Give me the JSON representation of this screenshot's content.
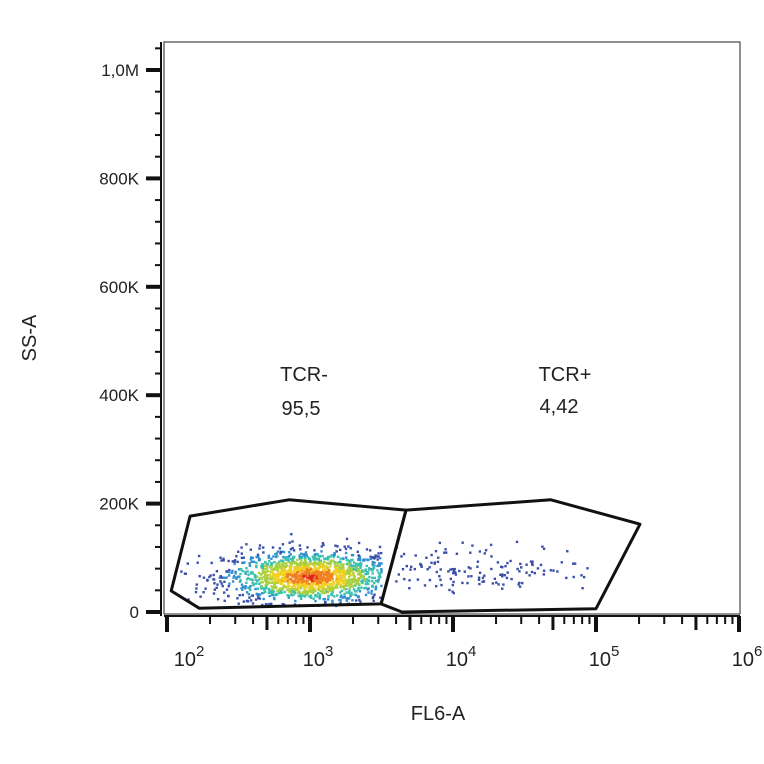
{
  "chart_data": {
    "type": "scatter",
    "title": "",
    "xlabel": "FL6-A",
    "ylabel": "SS-A",
    "xscale": "log",
    "xlim": [
      100,
      1000000
    ],
    "ylim": [
      0,
      1050000
    ],
    "x_ticks": [
      {
        "value": 100,
        "base": "10",
        "exp": "2"
      },
      {
        "value": 1000,
        "base": "10",
        "exp": "3"
      },
      {
        "value": 10000,
        "base": "10",
        "exp": "4"
      },
      {
        "value": 100000,
        "base": "10",
        "exp": "5"
      },
      {
        "value": 1000000,
        "base": "10",
        "exp": "6"
      }
    ],
    "y_ticks": [
      {
        "value": 0,
        "label": "0"
      },
      {
        "value": 200000,
        "label": "200K"
      },
      {
        "value": 400000,
        "label": "400K"
      },
      {
        "value": 600000,
        "label": "600K"
      },
      {
        "value": 800000,
        "label": "800K"
      },
      {
        "value": 1000000,
        "label": "1,0M"
      }
    ],
    "gates": [
      {
        "name": "TCR-",
        "percent": "95,5",
        "vertices": [
          [
            145,
            177000
          ],
          [
            713,
            207000
          ],
          [
            4690,
            188000
          ],
          [
            3140,
            15000
          ],
          [
            168,
            7000
          ],
          [
            107,
            39000
          ]
        ]
      },
      {
        "name": "TCR+",
        "percent": "4,42",
        "vertices": [
          [
            4690,
            188000
          ],
          [
            48400,
            207000
          ],
          [
            203000,
            162000
          ],
          [
            100000,
            6000
          ],
          [
            4400,
            0
          ],
          [
            3140,
            15000
          ]
        ]
      }
    ],
    "populations": [
      {
        "name": "TCR-",
        "count": 1500,
        "center_log10_x": 3.0,
        "sd_log10_x": 0.3,
        "center_y": 65000,
        "sd_y": 24000,
        "y_min": 10000,
        "y_max": 150000,
        "log10_x_min": 2.1,
        "log10_x_max": 3.5
      },
      {
        "name": "TCR+",
        "count": 140,
        "center_log10_x": 4.15,
        "sd_log10_x": 0.45,
        "center_y": 80000,
        "sd_y": 22000,
        "y_min": 30000,
        "y_max": 140000,
        "log10_x_min": 3.6,
        "log10_x_max": 5.05
      }
    ],
    "density_colors": [
      "#3b4fa8",
      "#2f8fd0",
      "#3cc0b0",
      "#a8d040",
      "#f0d020",
      "#f08020",
      "#e02020"
    ]
  }
}
